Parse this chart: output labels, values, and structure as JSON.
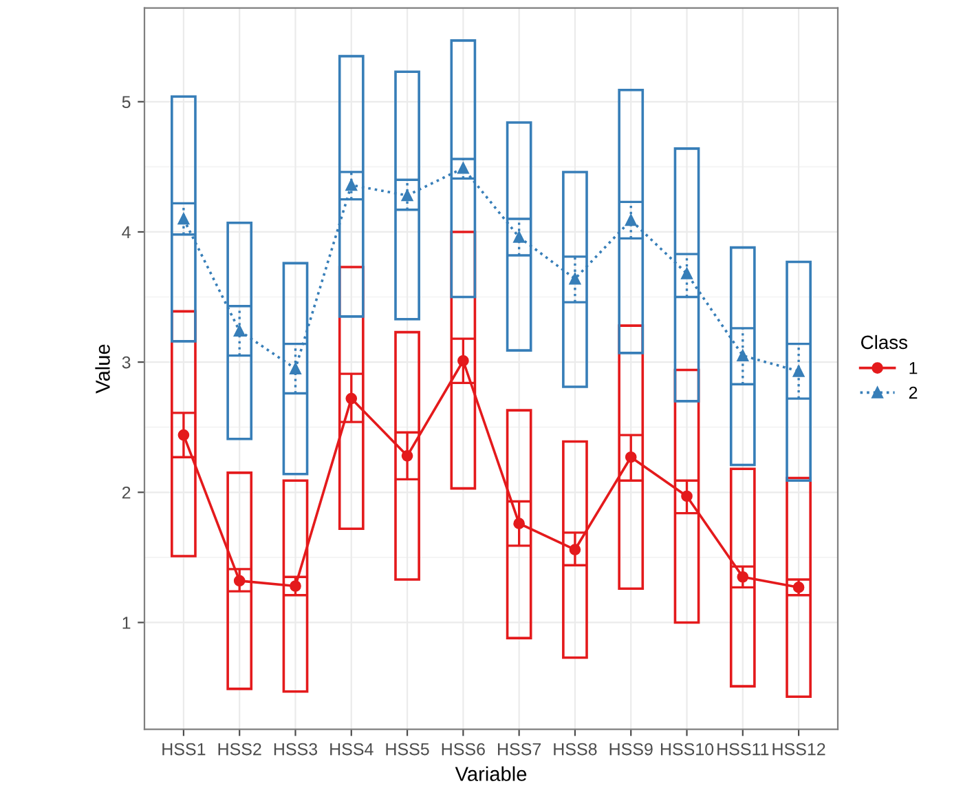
{
  "chart_data": {
    "type": "bar",
    "xlabel": "Variable",
    "ylabel": "Value",
    "legend_title": "Class",
    "legend": "right",
    "grid": true,
    "categories": [
      "HSS1",
      "HSS2",
      "HSS3",
      "HSS4",
      "HSS5",
      "HSS6",
      "HSS7",
      "HSS8",
      "HSS9",
      "HSS10",
      "HSS11",
      "HSS12"
    ],
    "ylim": [
      0.18,
      5.72
    ],
    "yticks": [
      1,
      2,
      3,
      4,
      5
    ],
    "series": [
      {
        "color": "#e41a1c",
        "base": [
          1.51,
          0.49,
          0.47,
          1.72,
          1.33,
          2.03,
          0.88,
          0.73,
          1.26,
          1.0,
          0.51,
          0.43
        ],
        "values": [
          1.88,
          1.66,
          1.62,
          2.01,
          1.9,
          1.97,
          1.75,
          1.66,
          2.02,
          1.94,
          1.67,
          1.68
        ]
      },
      {
        "color": "#377eb8",
        "base": [
          3.16,
          2.41,
          2.14,
          3.35,
          3.33,
          3.5,
          3.09,
          2.81,
          3.07,
          2.7,
          2.21,
          2.09
        ],
        "values": [
          1.88,
          1.66,
          1.62,
          2.0,
          1.9,
          1.97,
          1.75,
          1.65,
          2.02,
          1.94,
          1.67,
          1.68
        ]
      },
      {
        "type": "line",
        "name": "1",
        "color": "#e41a1c",
        "marker": "circle",
        "line_style": "solid",
        "values": [
          2.44,
          1.32,
          1.28,
          2.72,
          2.28,
          3.01,
          1.76,
          1.56,
          2.27,
          1.97,
          1.35,
          1.27
        ],
        "errors": [
          [
            2.27,
            2.61
          ],
          [
            1.24,
            1.41
          ],
          [
            1.21,
            1.35
          ],
          [
            2.54,
            2.91
          ],
          [
            2.1,
            2.46
          ],
          [
            2.84,
            3.18
          ],
          [
            1.59,
            1.93
          ],
          [
            1.44,
            1.69
          ],
          [
            2.09,
            2.44
          ],
          [
            1.84,
            2.09
          ],
          [
            1.27,
            1.43
          ],
          [
            1.21,
            1.33
          ]
        ]
      },
      {
        "type": "line",
        "name": "2",
        "color": "#377eb8",
        "marker": "triangle",
        "line_style": "dotted",
        "values": [
          4.1,
          3.24,
          2.95,
          4.36,
          4.28,
          4.49,
          3.96,
          3.64,
          4.09,
          3.68,
          3.05,
          2.93
        ],
        "errors": [
          [
            3.98,
            4.22
          ],
          [
            3.05,
            3.43
          ],
          [
            2.76,
            3.14
          ],
          [
            4.25,
            4.46
          ],
          [
            4.17,
            4.4
          ],
          [
            4.41,
            4.56
          ],
          [
            3.82,
            4.1
          ],
          [
            3.46,
            3.81
          ],
          [
            3.95,
            4.23
          ],
          [
            3.5,
            3.83
          ],
          [
            2.83,
            3.26
          ],
          [
            2.72,
            3.14
          ]
        ]
      }
    ]
  }
}
